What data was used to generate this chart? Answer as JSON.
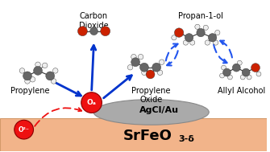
{
  "bg_color": "#ffffff",
  "srfeo_color": "#f2b48a",
  "srfeo_edge_color": "#d49a6a",
  "srfeo_text": "SrFeO",
  "srfeo_sub": "3-δ",
  "agclau_color": "#aaaaaa",
  "agclau_edge_color": "#888888",
  "agclau_text": "AgCl/Au",
  "oa_color": "#ee1111",
  "oa_text": "Oₐ",
  "o2minus_color": "#ee1111",
  "o2minus_text": "O²⁻",
  "label_carbon_dioxide": "Carbon\nDioxide",
  "label_propylene_oxide": "Propylene\nOxide",
  "label_propan1ol": "Propan-1-ol",
  "label_propylene": "Propylene",
  "label_allyl_alcohol": "Allyl Alcohol",
  "arrow_color": "#0033cc",
  "dashed_arrow_color": "#2255ee",
  "red_arrow_color": "#ee1111",
  "label_fontsize": 7.0,
  "srfeo_fontsize": 13,
  "agclau_fontsize": 8
}
